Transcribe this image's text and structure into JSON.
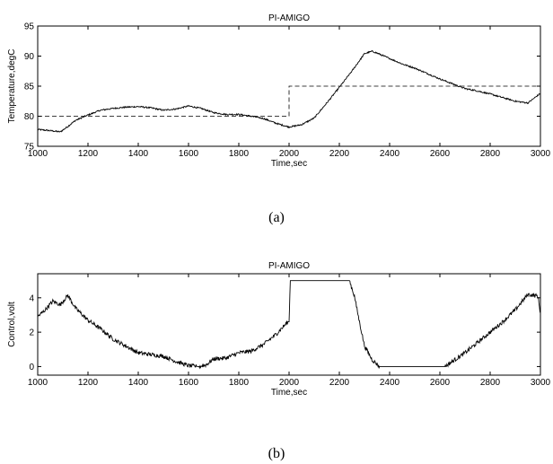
{
  "figure": {
    "panel_a_caption": "(a)",
    "panel_b_caption": "(b)"
  },
  "chart_data": [
    {
      "type": "line",
      "title": "PI-AMIGO",
      "xlabel": "Time,sec",
      "ylabel": "Temperature,degC",
      "xlim": [
        1000,
        3000
      ],
      "ylim": [
        75,
        95
      ],
      "xticks": [
        1000,
        1200,
        1400,
        1600,
        1800,
        2000,
        2200,
        2400,
        2600,
        2800,
        3000
      ],
      "yticks": [
        75,
        80,
        85,
        90,
        95
      ],
      "grid": false,
      "legend": "none",
      "series": [
        {
          "style": "dashed",
          "x": [
            1000,
            2000,
            2000,
            3000
          ],
          "y": [
            80,
            80,
            85,
            85
          ]
        },
        {
          "style": "solid",
          "noisy": true,
          "x": [
            1000,
            1050,
            1090,
            1120,
            1150,
            1200,
            1250,
            1300,
            1350,
            1400,
            1450,
            1500,
            1550,
            1600,
            1650,
            1700,
            1750,
            1800,
            1850,
            1900,
            1950,
            2000,
            2050,
            2100,
            2150,
            2200,
            2250,
            2300,
            2330,
            2350,
            2400,
            2450,
            2500,
            2550,
            2600,
            2650,
            2700,
            2750,
            2800,
            2850,
            2900,
            2950,
            3000
          ],
          "y": [
            77.8,
            77.6,
            77.4,
            78.3,
            79.3,
            80.2,
            81.0,
            81.3,
            81.5,
            81.6,
            81.4,
            81.0,
            81.2,
            81.7,
            81.3,
            80.6,
            80.3,
            80.3,
            80.0,
            79.6,
            78.8,
            78.2,
            78.6,
            79.7,
            82.2,
            84.8,
            87.5,
            90.4,
            90.8,
            90.5,
            89.6,
            88.7,
            88.0,
            87.1,
            86.2,
            85.4,
            84.6,
            84.2,
            83.7,
            83.1,
            82.5,
            82.2,
            83.8
          ]
        }
      ]
    },
    {
      "type": "line",
      "title": "PI-AMIGO",
      "xlabel": "Time,sec",
      "ylabel": "Control,volt",
      "xlim": [
        1000,
        3000
      ],
      "ylim": [
        -0.5,
        5.4
      ],
      "xticks": [
        1000,
        1200,
        1400,
        1600,
        1800,
        2000,
        2200,
        2400,
        2600,
        2800,
        3000
      ],
      "yticks": [
        0,
        2,
        4
      ],
      "grid": false,
      "legend": "none",
      "series": [
        {
          "style": "solid",
          "noisy": true,
          "x": [
            1000,
            1030,
            1060,
            1090,
            1120,
            1150,
            1200,
            1250,
            1300,
            1350,
            1400,
            1450,
            1500,
            1550,
            1600,
            1640,
            1670,
            1700,
            1750,
            1800,
            1850,
            1900,
            1950,
            1995,
            2000,
            2005,
            2240,
            2260,
            2280,
            2300,
            2330,
            2360,
            2380,
            2620,
            2650,
            2700,
            2750,
            2800,
            2850,
            2900,
            2950,
            2990,
            3000
          ],
          "y": [
            2.9,
            3.3,
            3.8,
            3.6,
            4.15,
            3.4,
            2.7,
            2.2,
            1.6,
            1.2,
            0.8,
            0.7,
            0.6,
            0.3,
            0.05,
            0.0,
            0.1,
            0.45,
            0.5,
            0.8,
            0.9,
            1.3,
            1.9,
            2.6,
            2.6,
            5.0,
            5.0,
            4.1,
            2.6,
            1.2,
            0.4,
            0.0,
            0.0,
            0.0,
            0.3,
            0.8,
            1.4,
            2.0,
            2.6,
            3.3,
            4.2,
            4.1,
            3.1
          ]
        }
      ]
    }
  ]
}
